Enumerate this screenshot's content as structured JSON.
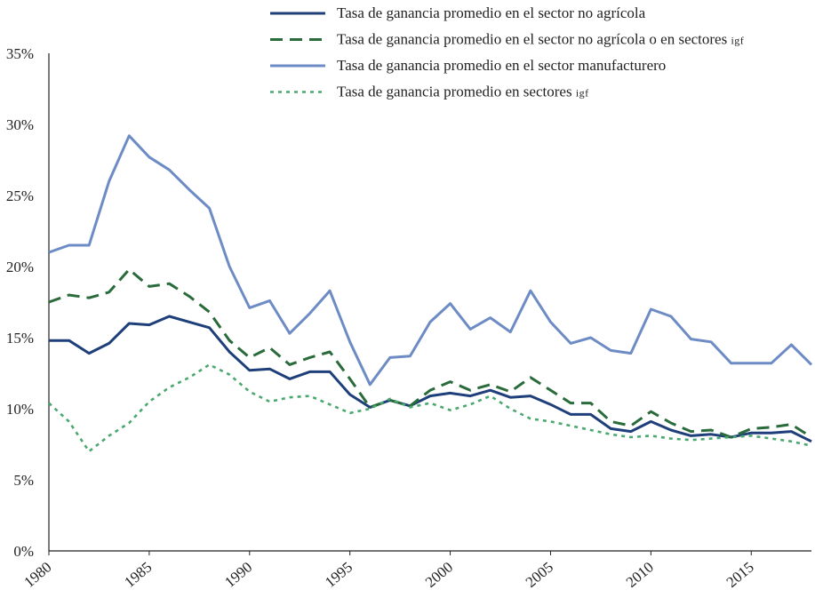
{
  "chart_data": {
    "type": "line",
    "title": "",
    "xlabel": "",
    "ylabel": "",
    "xlim": [
      1980,
      2018
    ],
    "ylim": [
      0,
      35
    ],
    "y_ticks": [
      0,
      5,
      10,
      15,
      20,
      25,
      30,
      35
    ],
    "y_tick_labels": [
      "0%",
      "5%",
      "10%",
      "15%",
      "20%",
      "25%",
      "30%",
      "35%"
    ],
    "x_ticks": [
      1980,
      1985,
      1990,
      1995,
      2000,
      2005,
      2010,
      2015
    ],
    "x_tick_labels": [
      "1980",
      "1985",
      "1990",
      "1995",
      "2000",
      "2005",
      "2010",
      "2015"
    ],
    "grid": false,
    "legend_position": "top",
    "x": [
      1980,
      1981,
      1982,
      1983,
      1984,
      1985,
      1986,
      1987,
      1988,
      1989,
      1990,
      1991,
      1992,
      1993,
      1994,
      1995,
      1996,
      1997,
      1998,
      1999,
      2000,
      2001,
      2002,
      2003,
      2004,
      2005,
      2006,
      2007,
      2008,
      2009,
      2010,
      2011,
      2012,
      2013,
      2014,
      2015,
      2016,
      2017,
      2018
    ],
    "series": [
      {
        "name": "Tasa de ganancia promedio en el sector no agrícola",
        "name_main": "Tasa de ganancia promedio en el sector no agrícola",
        "name_sc": "",
        "color": "#1f3f7a",
        "style": "solid",
        "values": [
          14.8,
          14.8,
          13.9,
          14.6,
          16.0,
          15.9,
          16.5,
          16.1,
          15.7,
          14.0,
          12.7,
          12.8,
          12.1,
          12.6,
          12.6,
          11.0,
          10.1,
          10.6,
          10.2,
          10.9,
          11.1,
          10.9,
          11.3,
          10.8,
          10.9,
          10.3,
          9.6,
          9.6,
          8.6,
          8.4,
          9.1,
          8.5,
          8.1,
          8.2,
          8.0,
          8.3,
          8.3,
          8.4,
          7.7
        ]
      },
      {
        "name": "Tasa de ganancia promedio en el sector no agrícola o en sectores IGF",
        "name_main": "Tasa de ganancia promedio en el sector no agrícola o en sectores ",
        "name_sc": "IGF",
        "color": "#2a6b3c",
        "style": "dashed",
        "values": [
          17.5,
          18.0,
          17.8,
          18.2,
          19.8,
          18.6,
          18.8,
          17.9,
          16.8,
          14.8,
          13.6,
          14.3,
          13.1,
          13.6,
          14.0,
          12.1,
          10.1,
          10.6,
          10.2,
          11.3,
          11.9,
          11.3,
          11.7,
          11.2,
          12.2,
          11.3,
          10.4,
          10.4,
          9.1,
          8.8,
          9.8,
          9.0,
          8.4,
          8.5,
          8.0,
          8.6,
          8.7,
          8.9,
          8.0
        ]
      },
      {
        "name": "Tasa de ganancia promedio en el sector manufacturero",
        "name_main": "Tasa de ganancia promedio en el sector manufacturero",
        "name_sc": "",
        "color": "#6d8bc4",
        "style": "solid",
        "values": [
          21.0,
          21.5,
          21.5,
          26.0,
          29.2,
          27.7,
          26.8,
          25.4,
          24.1,
          20.0,
          17.1,
          17.6,
          15.3,
          16.7,
          18.3,
          14.7,
          11.7,
          13.6,
          13.7,
          16.1,
          17.4,
          15.6,
          16.4,
          15.4,
          18.3,
          16.1,
          14.6,
          15.0,
          14.1,
          13.9,
          17.0,
          16.5,
          14.9,
          14.7,
          13.2,
          13.2,
          13.2,
          14.5,
          13.1
        ]
      },
      {
        "name": "Tasa de ganancia promedio en sectores IGF",
        "name_main": "Tasa de ganancia promedio en sectores ",
        "name_sc": "IGF",
        "color": "#4aa86f",
        "style": "dotted",
        "values": [
          10.4,
          9.1,
          7.0,
          8.1,
          9.0,
          10.5,
          11.5,
          12.2,
          13.1,
          12.4,
          11.2,
          10.5,
          10.8,
          10.9,
          10.3,
          9.7,
          10.0,
          10.7,
          10.1,
          10.4,
          9.9,
          10.3,
          10.9,
          10.0,
          9.3,
          9.1,
          8.8,
          8.5,
          8.2,
          8.0,
          8.1,
          7.9,
          7.8,
          7.9,
          8.0,
          8.1,
          7.9,
          7.7,
          7.4
        ]
      }
    ]
  }
}
